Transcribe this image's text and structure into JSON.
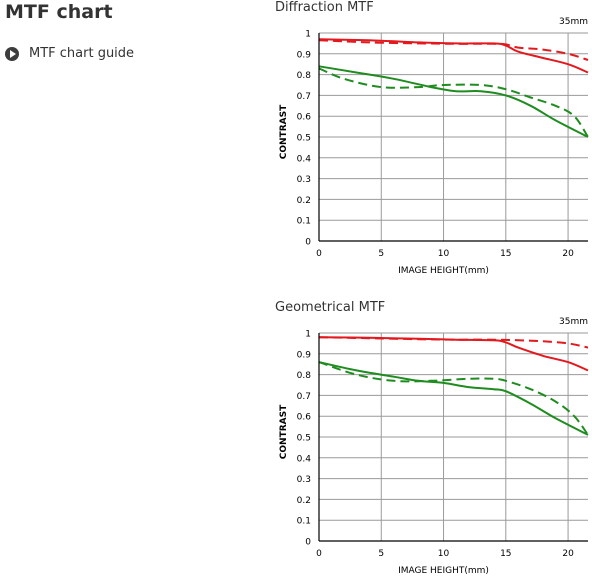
{
  "page": {
    "title": "MTF chart",
    "guide_link": "MTF chart guide"
  },
  "colors": {
    "sagittal_high": "#e3191e",
    "sagittal_low": "#1e8c1e",
    "grid": "#9a9a9a",
    "axis": "#000000"
  },
  "chart_data": [
    {
      "type": "line",
      "title": "Diffraction MTF",
      "corner_label": "35mm",
      "xlabel": "IMAGE HEIGHT(mm)",
      "ylabel": "CONTRAST",
      "xlim": [
        0,
        21.6
      ],
      "ylim": [
        0,
        1
      ],
      "xticks": [
        0,
        5,
        10,
        15,
        20
      ],
      "yticks": [
        0,
        0.1,
        0.2,
        0.3,
        0.4,
        0.5,
        0.6,
        0.7,
        0.8,
        0.9,
        1
      ],
      "grid": true,
      "series": [
        {
          "color": "#e3191e",
          "dash": false,
          "x": [
            0,
            4,
            8,
            11,
            14,
            15,
            16,
            18,
            20,
            21.6
          ],
          "y": [
            0.97,
            0.965,
            0.955,
            0.95,
            0.95,
            0.94,
            0.91,
            0.88,
            0.85,
            0.81
          ]
        },
        {
          "color": "#e3191e",
          "dash": true,
          "x": [
            0,
            4,
            8,
            11,
            14,
            15,
            16,
            18,
            20,
            21.6
          ],
          "y": [
            0.965,
            0.955,
            0.95,
            0.948,
            0.948,
            0.945,
            0.93,
            0.92,
            0.9,
            0.87
          ]
        },
        {
          "color": "#1e8c1e",
          "dash": false,
          "x": [
            0,
            3,
            6,
            9,
            11,
            13,
            15,
            17,
            19,
            21.6
          ],
          "y": [
            0.84,
            0.81,
            0.78,
            0.74,
            0.72,
            0.72,
            0.7,
            0.65,
            0.58,
            0.5
          ]
        },
        {
          "color": "#1e8c1e",
          "dash": true,
          "x": [
            0,
            2,
            5,
            8,
            10,
            13,
            15,
            17,
            19,
            20.5,
            21.6
          ],
          "y": [
            0.83,
            0.78,
            0.74,
            0.74,
            0.75,
            0.75,
            0.73,
            0.69,
            0.65,
            0.6,
            0.5
          ]
        }
      ]
    },
    {
      "type": "line",
      "title": "Geometrical MTF",
      "corner_label": "35mm",
      "xlabel": "IMAGE HEIGHT(mm)",
      "ylabel": "CONTRAST",
      "xlim": [
        0,
        21.6
      ],
      "ylim": [
        0,
        1
      ],
      "xticks": [
        0,
        5,
        10,
        15,
        20
      ],
      "yticks": [
        0,
        0.1,
        0.2,
        0.3,
        0.4,
        0.5,
        0.6,
        0.7,
        0.8,
        0.9,
        1
      ],
      "grid": true,
      "series": [
        {
          "color": "#e3191e",
          "dash": false,
          "x": [
            0,
            4,
            8,
            11,
            14,
            15,
            16,
            18,
            20,
            21.6
          ],
          "y": [
            0.98,
            0.977,
            0.972,
            0.968,
            0.965,
            0.955,
            0.93,
            0.89,
            0.86,
            0.82
          ]
        },
        {
          "color": "#e3191e",
          "dash": true,
          "x": [
            0,
            4,
            8,
            11,
            14,
            16,
            18,
            20,
            21.6
          ],
          "y": [
            0.98,
            0.975,
            0.97,
            0.968,
            0.968,
            0.965,
            0.96,
            0.95,
            0.93
          ]
        },
        {
          "color": "#1e8c1e",
          "dash": false,
          "x": [
            0,
            3,
            6,
            8,
            10,
            12,
            14,
            15,
            17,
            19,
            21.6
          ],
          "y": [
            0.86,
            0.82,
            0.79,
            0.77,
            0.76,
            0.74,
            0.73,
            0.72,
            0.66,
            0.59,
            0.51
          ]
        },
        {
          "color": "#1e8c1e",
          "dash": true,
          "x": [
            0,
            3,
            6,
            9,
            12,
            14,
            15,
            17,
            19,
            20.5,
            21.6
          ],
          "y": [
            0.86,
            0.8,
            0.77,
            0.77,
            0.78,
            0.78,
            0.77,
            0.73,
            0.67,
            0.6,
            0.51
          ]
        }
      ]
    }
  ]
}
